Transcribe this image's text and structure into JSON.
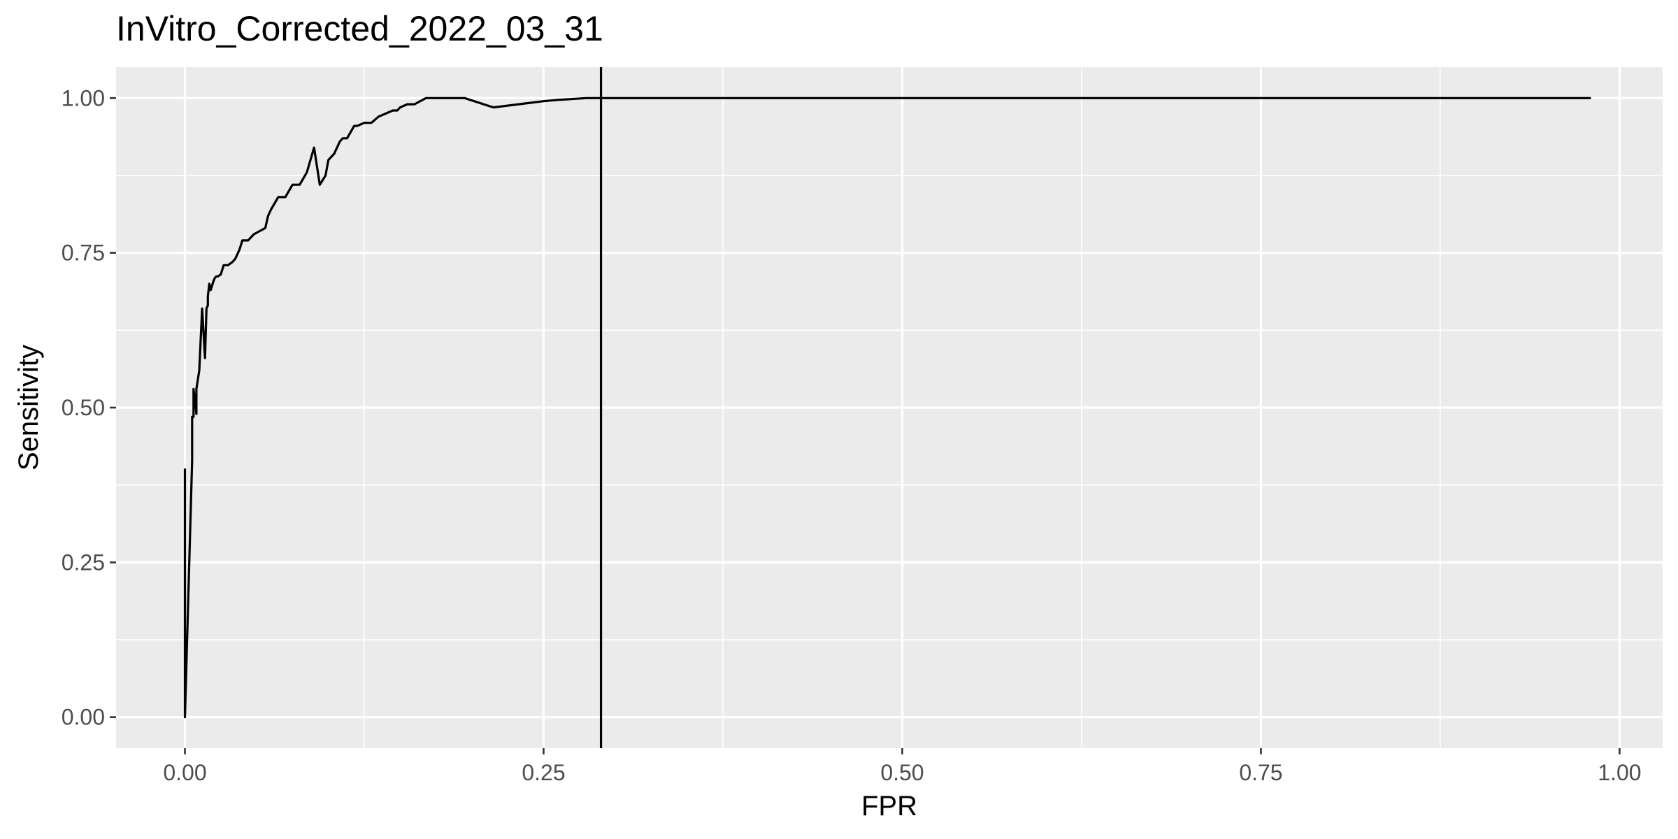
{
  "chart_data": {
    "type": "line",
    "title": "InVitro_Corrected_2022_03_31",
    "xlabel": "FPR",
    "ylabel": "Sensitivity",
    "xlim": [
      -0.048,
      1.03
    ],
    "ylim": [
      -0.05,
      1.05
    ],
    "grid": true,
    "legend": "none",
    "x_ticks": [
      {
        "value": 0.0,
        "label": "0.00"
      },
      {
        "value": 0.25,
        "label": "0.25"
      },
      {
        "value": 0.5,
        "label": "0.50"
      },
      {
        "value": 0.75,
        "label": "0.75"
      },
      {
        "value": 1.0,
        "label": "1.00"
      }
    ],
    "y_ticks": [
      {
        "value": 0.0,
        "label": "0.00"
      },
      {
        "value": 0.25,
        "label": "0.25"
      },
      {
        "value": 0.5,
        "label": "0.50"
      },
      {
        "value": 0.75,
        "label": "0.75"
      },
      {
        "value": 1.0,
        "label": "1.00"
      }
    ],
    "x_minor": [
      0.125,
      0.375,
      0.625,
      0.875
    ],
    "y_minor": [
      0.125,
      0.375,
      0.625,
      0.875
    ],
    "vline_x": 0.29,
    "colors": {
      "panel": "#ebebeb",
      "grid": "#ffffff",
      "line": "#000000",
      "tick": "#333333",
      "tick_label": "#4d4d4d"
    },
    "series": [
      {
        "x": [
          0.0,
          0.0,
          0.0,
          0.005,
          0.005,
          0.006,
          0.006,
          0.008,
          0.008,
          0.01,
          0.012,
          0.014,
          0.015,
          0.016,
          0.016,
          0.017,
          0.018,
          0.02,
          0.021,
          0.022,
          0.023,
          0.025,
          0.027,
          0.03,
          0.033,
          0.035,
          0.038,
          0.04,
          0.044,
          0.048,
          0.052,
          0.056,
          0.058,
          0.06,
          0.065,
          0.07,
          0.075,
          0.08,
          0.085,
          0.09,
          0.094,
          0.098,
          0.1,
          0.104,
          0.108,
          0.11,
          0.113,
          0.118,
          0.12,
          0.125,
          0.13,
          0.135,
          0.14,
          0.145,
          0.148,
          0.15,
          0.155,
          0.16,
          0.168,
          0.18,
          0.195,
          0.215,
          0.25,
          0.26,
          0.28,
          0.29,
          0.98
        ],
        "y": [
          0.0,
          0.4,
          0.0,
          0.415,
          0.485,
          0.485,
          0.53,
          0.49,
          0.53,
          0.56,
          0.66,
          0.58,
          0.66,
          0.665,
          0.68,
          0.7,
          0.69,
          0.705,
          0.71,
          0.712,
          0.712,
          0.715,
          0.73,
          0.73,
          0.735,
          0.74,
          0.755,
          0.77,
          0.77,
          0.78,
          0.785,
          0.79,
          0.81,
          0.82,
          0.84,
          0.84,
          0.86,
          0.86,
          0.88,
          0.92,
          0.86,
          0.875,
          0.9,
          0.91,
          0.93,
          0.935,
          0.935,
          0.955,
          0.955,
          0.96,
          0.96,
          0.97,
          0.975,
          0.98,
          0.98,
          0.985,
          0.99,
          0.99,
          1.0,
          1.0,
          1.0,
          0.985,
          0.995,
          0.997,
          1.0,
          1.0,
          1.0
        ]
      }
    ]
  }
}
